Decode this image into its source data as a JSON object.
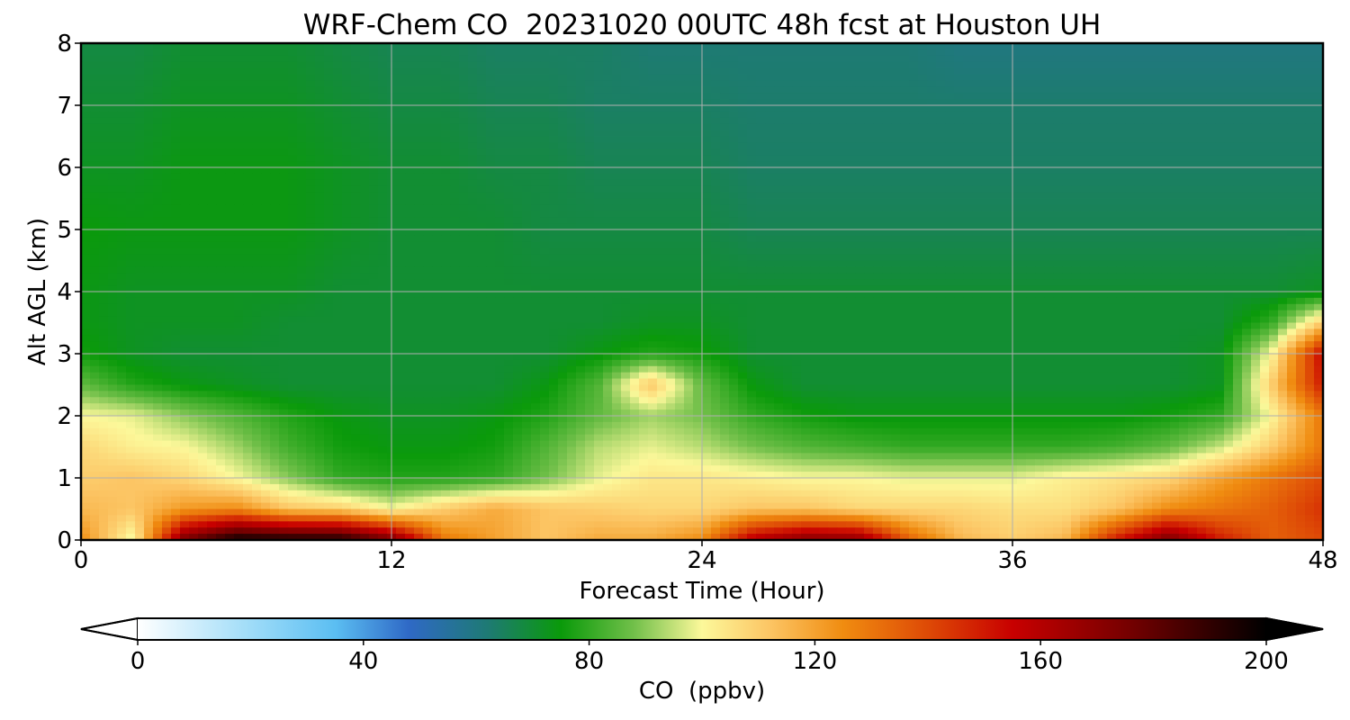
{
  "chart_data": {
    "type": "heatmap",
    "title": "WRF-Chem CO  20231020 00UTC 48h fcst at Houston UH",
    "xlabel": "Forecast Time (Hour)",
    "ylabel": "Alt AGL (km)",
    "xlim": [
      0,
      48
    ],
    "ylim": [
      0,
      8
    ],
    "x_ticks": [
      0,
      12,
      24,
      36,
      48
    ],
    "y_ticks": [
      0,
      1,
      2,
      3,
      4,
      5,
      6,
      7,
      8
    ],
    "grid": true,
    "colorbar": {
      "label": "CO  (ppbv)",
      "min": 0,
      "max": 200,
      "ticks": [
        0,
        40,
        80,
        120,
        160,
        200
      ],
      "extend": "both",
      "stops": [
        {
          "value": 0,
          "color": "#ffffff"
        },
        {
          "value": 20,
          "color": "#9fdcf8"
        },
        {
          "value": 35,
          "color": "#5bbef2"
        },
        {
          "value": 48,
          "color": "#2f69c6"
        },
        {
          "value": 62,
          "color": "#1e7a74"
        },
        {
          "value": 75,
          "color": "#0a9a0a"
        },
        {
          "value": 88,
          "color": "#72c04a"
        },
        {
          "value": 100,
          "color": "#fcf89a"
        },
        {
          "value": 112,
          "color": "#fcc564"
        },
        {
          "value": 125,
          "color": "#f08c10"
        },
        {
          "value": 140,
          "color": "#de4a06"
        },
        {
          "value": 155,
          "color": "#c80000"
        },
        {
          "value": 175,
          "color": "#780000"
        },
        {
          "value": 200,
          "color": "#000000"
        }
      ]
    },
    "altitudes_km": [
      0,
      0.5,
      1,
      1.5,
      2,
      2.5,
      3,
      3.5,
      4,
      5,
      6,
      7,
      8
    ],
    "forecast_hours": [
      0,
      2,
      4,
      6,
      8,
      10,
      12,
      14,
      16,
      18,
      20,
      22,
      24,
      26,
      28,
      30,
      32,
      34,
      36,
      38,
      40,
      42,
      44,
      46,
      48
    ],
    "co_ppbv_rows_by_altitude": [
      [
        125,
        98,
        175,
        198,
        196,
        195,
        175,
        130,
        120,
        112,
        118,
        118,
        125,
        160,
        172,
        170,
        135,
        115,
        110,
        115,
        150,
        175,
        150,
        135,
        140
      ],
      [
        115,
        112,
        122,
        125,
        112,
        110,
        100,
        110,
        118,
        112,
        110,
        108,
        108,
        112,
        112,
        108,
        108,
        108,
        106,
        106,
        112,
        125,
        130,
        135,
        145
      ],
      [
        110,
        112,
        108,
        100,
        90,
        80,
        78,
        78,
        80,
        88,
        98,
        104,
        104,
        102,
        100,
        100,
        98,
        98,
        98,
        102,
        105,
        108,
        120,
        130,
        140
      ],
      [
        108,
        102,
        100,
        92,
        82,
        76,
        74,
        74,
        76,
        84,
        94,
        98,
        94,
        88,
        84,
        82,
        80,
        80,
        80,
        80,
        82,
        86,
        95,
        110,
        130
      ],
      [
        100,
        98,
        90,
        84,
        78,
        74,
        72,
        72,
        74,
        78,
        86,
        92,
        88,
        80,
        76,
        74,
        74,
        74,
        74,
        74,
        74,
        76,
        80,
        100,
        130
      ],
      [
        86,
        78,
        74,
        72,
        70,
        70,
        70,
        70,
        70,
        74,
        84,
        112,
        86,
        74,
        70,
        70,
        70,
        70,
        70,
        70,
        70,
        70,
        72,
        110,
        150
      ],
      [
        76,
        72,
        70,
        70,
        70,
        70,
        70,
        70,
        70,
        70,
        74,
        78,
        76,
        70,
        70,
        70,
        70,
        70,
        70,
        70,
        70,
        70,
        72,
        100,
        155
      ],
      [
        74,
        72,
        72,
        72,
        70,
        70,
        70,
        70,
        70,
        70,
        70,
        72,
        72,
        70,
        70,
        70,
        70,
        70,
        70,
        70,
        70,
        70,
        70,
        80,
        110
      ],
      [
        74,
        72,
        72,
        72,
        72,
        70,
        70,
        70,
        70,
        70,
        70,
        70,
        70,
        70,
        70,
        70,
        70,
        70,
        70,
        70,
        70,
        70,
        70,
        70,
        72
      ],
      [
        75,
        74,
        74,
        74,
        74,
        72,
        70,
        70,
        70,
        68,
        68,
        68,
        68,
        66,
        66,
        66,
        66,
        66,
        66,
        66,
        66,
        66,
        66,
        66,
        66
      ],
      [
        72,
        72,
        74,
        74,
        74,
        72,
        70,
        70,
        68,
        68,
        66,
        66,
        66,
        64,
        64,
        64,
        64,
        64,
        64,
        64,
        64,
        64,
        64,
        64,
        64
      ],
      [
        70,
        70,
        72,
        72,
        72,
        70,
        68,
        68,
        66,
        66,
        64,
        64,
        64,
        63,
        63,
        63,
        63,
        63,
        63,
        63,
        63,
        63,
        63,
        63,
        63
      ],
      [
        68,
        68,
        70,
        70,
        70,
        68,
        66,
        66,
        64,
        64,
        64,
        62,
        62,
        62,
        62,
        62,
        62,
        60,
        60,
        60,
        60,
        60,
        60,
        60,
        60
      ]
    ]
  }
}
